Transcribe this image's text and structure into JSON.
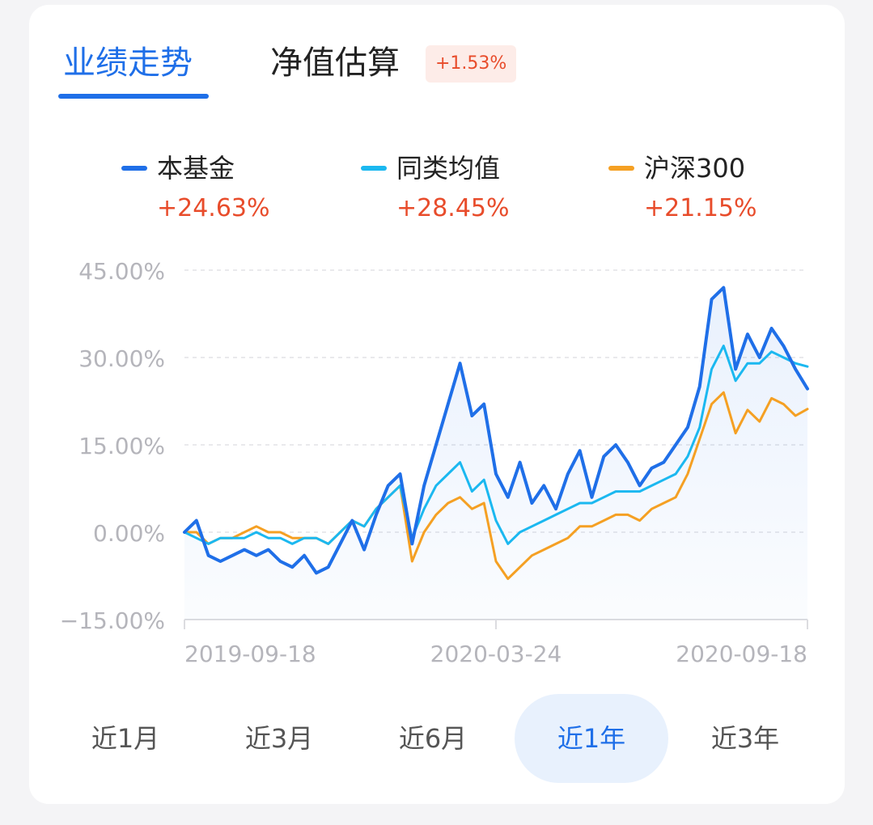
{
  "tabs": [
    {
      "label": "业绩走势",
      "active": true
    },
    {
      "label": "净值估算",
      "active": false
    }
  ],
  "estimate_badge": "+1.53%",
  "legend": [
    {
      "name": "本基金",
      "value": "+24.63%",
      "color": "#1f6fe8"
    },
    {
      "name": "同类均值",
      "value": "+28.45%",
      "color": "#1bb8f0"
    },
    {
      "name": "沪深300",
      "value": "+21.15%",
      "color": "#f5a023"
    }
  ],
  "periods": [
    {
      "label": "近1月",
      "active": false
    },
    {
      "label": "近3月",
      "active": false
    },
    {
      "label": "近6月",
      "active": false
    },
    {
      "label": "近1年",
      "active": true
    },
    {
      "label": "近3年",
      "active": false
    }
  ],
  "chart_data": {
    "type": "line",
    "y_ticks": [
      "45.00%",
      "30.00%",
      "15.00%",
      "0.00%",
      "−15.00%"
    ],
    "ylim": [
      -15,
      45
    ],
    "x_ticks": [
      "2019-09-18",
      "2020-03-24",
      "2020-09-18"
    ],
    "grid": true,
    "x": [
      "2019-09-18",
      "2019-09-25",
      "2019-10-02",
      "2019-10-09",
      "2019-10-16",
      "2019-10-23",
      "2019-10-30",
      "2019-11-06",
      "2019-11-13",
      "2019-11-20",
      "2019-11-27",
      "2019-12-04",
      "2019-12-11",
      "2019-12-18",
      "2019-12-25",
      "2020-01-01",
      "2020-01-08",
      "2020-01-15",
      "2020-01-22",
      "2020-01-29",
      "2020-02-05",
      "2020-02-12",
      "2020-02-19",
      "2020-02-26",
      "2020-03-04",
      "2020-03-11",
      "2020-03-18",
      "2020-03-24",
      "2020-04-01",
      "2020-04-08",
      "2020-04-15",
      "2020-04-22",
      "2020-04-29",
      "2020-05-06",
      "2020-05-13",
      "2020-05-20",
      "2020-05-27",
      "2020-06-03",
      "2020-06-10",
      "2020-06-17",
      "2020-06-24",
      "2020-07-01",
      "2020-07-08",
      "2020-07-15",
      "2020-07-22",
      "2020-07-29",
      "2020-08-05",
      "2020-08-12",
      "2020-08-19",
      "2020-08-26",
      "2020-09-02",
      "2020-09-09",
      "2020-09-18"
    ],
    "series": [
      {
        "name": "本基金",
        "color": "#1f6fe8",
        "values": [
          0,
          2,
          -4,
          -5,
          -4,
          -3,
          -4,
          -3,
          -5,
          -6,
          -4,
          -7,
          -6,
          -2,
          2,
          -3,
          3,
          8,
          10,
          -2,
          8,
          15,
          22,
          29,
          20,
          22,
          10,
          6,
          12,
          5,
          8,
          4,
          10,
          14,
          6,
          13,
          15,
          12,
          8,
          11,
          12,
          15,
          18,
          25,
          40,
          42,
          28,
          34,
          30,
          35,
          32,
          28,
          24.63
        ]
      },
      {
        "name": "同类均值",
        "color": "#1bb8f0",
        "values": [
          0,
          -1,
          -2,
          -1,
          -1,
          -1,
          0,
          -1,
          -1,
          -2,
          -1,
          -1,
          -2,
          0,
          2,
          1,
          4,
          6,
          8,
          -1,
          4,
          8,
          10,
          12,
          7,
          9,
          2,
          -2,
          0,
          1,
          2,
          3,
          4,
          5,
          5,
          6,
          7,
          7,
          7,
          8,
          9,
          10,
          13,
          18,
          28,
          32,
          26,
          29,
          29,
          31,
          30,
          29,
          28.45
        ]
      },
      {
        "name": "沪深300",
        "color": "#f5a023",
        "values": [
          0,
          0,
          -2,
          -1,
          -1,
          0,
          1,
          0,
          0,
          -1,
          -1,
          -1,
          -2,
          0,
          2,
          1,
          4,
          6,
          8,
          -5,
          0,
          3,
          5,
          6,
          4,
          5,
          -5,
          -8,
          -6,
          -4,
          -3,
          -2,
          -1,
          1,
          1,
          2,
          3,
          3,
          2,
          4,
          5,
          6,
          10,
          16,
          22,
          24,
          17,
          21,
          19,
          23,
          22,
          20,
          21.15
        ]
      }
    ]
  }
}
